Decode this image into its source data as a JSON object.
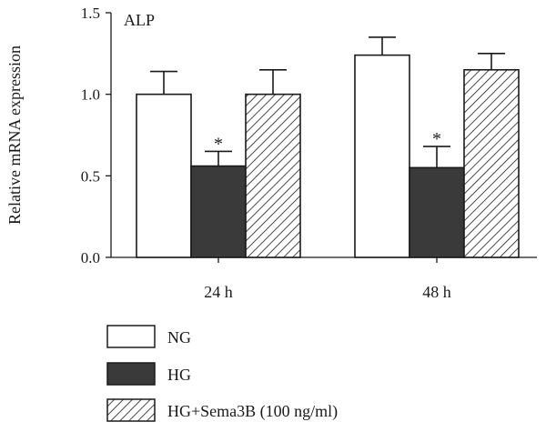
{
  "chart_data": {
    "type": "bar",
    "title": "ALP",
    "xlabel": "",
    "ylabel": "Relative mRNA expression",
    "categories": [
      "24 h",
      "48 h"
    ],
    "ylim": [
      0,
      1.5
    ],
    "yticks": [
      "0.0",
      "0.5",
      "1.0",
      "1.5"
    ],
    "grid": false,
    "legend_position": "bottom",
    "series": [
      {
        "name": "NG",
        "values": [
          1.0,
          1.24
        ],
        "errors": [
          0.14,
          0.11
        ],
        "significance": [
          "",
          ""
        ],
        "fill": "#ffffff",
        "pattern": "none"
      },
      {
        "name": "HG",
        "values": [
          0.56,
          0.55
        ],
        "errors": [
          0.09,
          0.13
        ],
        "significance": [
          "*",
          "*"
        ],
        "fill": "#3a3a3a",
        "pattern": "none"
      },
      {
        "name": "HG+Sema3B (100 ng/ml)",
        "values": [
          1.0,
          1.15
        ],
        "errors": [
          0.15,
          0.1
        ],
        "significance": [
          "",
          ""
        ],
        "fill": "#ffffff",
        "pattern": "diagonal-hatch"
      }
    ]
  }
}
